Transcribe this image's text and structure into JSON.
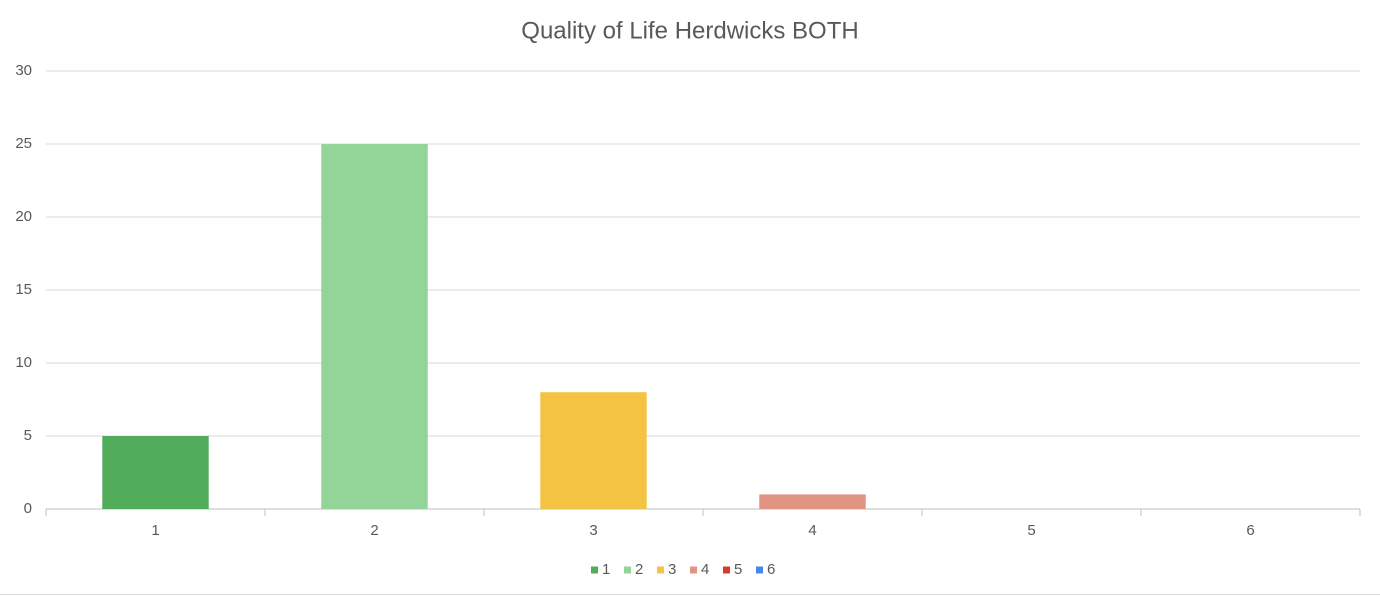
{
  "chart_data": {
    "type": "bar",
    "title": "Quality of Life Herdwicks BOTH",
    "categories": [
      "1",
      "2",
      "3",
      "4",
      "5",
      "6"
    ],
    "values": [
      5,
      25,
      8,
      1,
      0,
      0
    ],
    "colors": [
      "#51ad5b",
      "#93d498",
      "#f4c343",
      "#e29483",
      "#d83b2b",
      "#4a86e8"
    ],
    "ylim": [
      0,
      30
    ],
    "yticks": [
      0,
      5,
      10,
      15,
      20,
      25,
      30
    ],
    "grid": true,
    "legend": "bottom"
  }
}
